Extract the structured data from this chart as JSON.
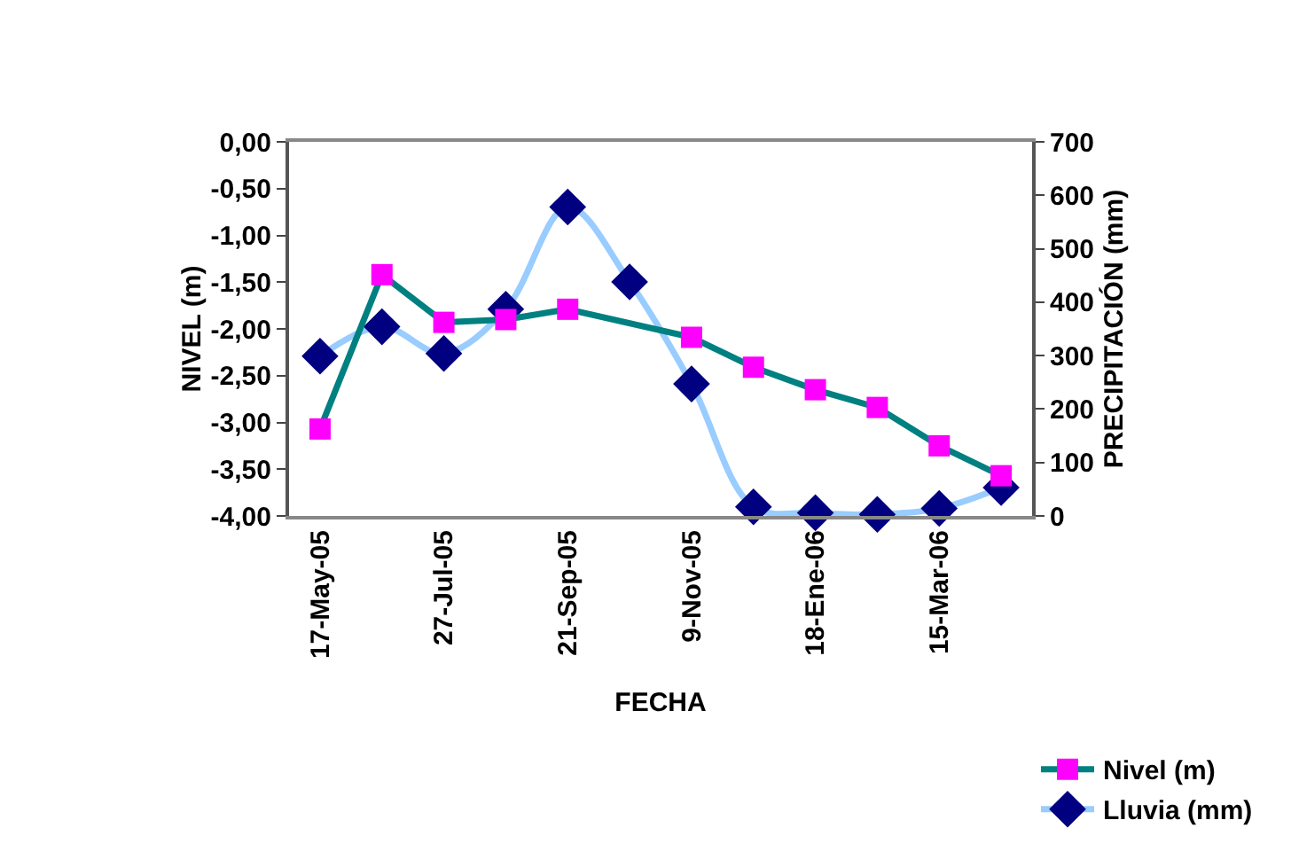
{
  "chart_data": {
    "type": "line",
    "xlabel": "FECHA",
    "ylabel": "NIVEL (m)",
    "y2label": "PRECIPITACIÓN (mm)",
    "categories": [
      "17-May-05",
      null,
      "27-Jul-05",
      null,
      "21-Sep-05",
      null,
      "9-Nov-05",
      null,
      "18-Ene-06",
      null,
      "15-Mar-06",
      null
    ],
    "series": [
      {
        "name": "Lluvia (mm)",
        "color": "#99ccff",
        "colors": [
          "#000080",
          "#000080",
          "#000080",
          "#000080",
          "#000080",
          "#000080",
          "#000080",
          "#000080",
          "#000080",
          "#000080",
          "#000080",
          "#000080"
        ],
        "marker": "diamond",
        "axis": "y2",
        "values": [
          299,
          354,
          304,
          387,
          578,
          438,
          247,
          17,
          6,
          3,
          14,
          53
        ]
      },
      {
        "name": "Nivel (m)",
        "color": "#008080",
        "colors": [
          "#ff00ff",
          "#ff00ff",
          "#ff00ff",
          "#ff00ff",
          "#ff00ff",
          null,
          "#ff00ff",
          "#ff00ff",
          "#ff00ff",
          "#ff00ff",
          "#ff00ff",
          "#ff00ff"
        ],
        "marker": "square",
        "values": [
          -3.07,
          -1.42,
          -1.93,
          -1.9,
          -1.79,
          null,
          -2.09,
          -2.41,
          -2.65,
          -2.84,
          -3.25,
          -3.57
        ]
      }
    ],
    "ylim": [
      -4,
      0
    ],
    "yticks": [
      {
        "value": 0,
        "label": "0,00"
      },
      {
        "value": -0.5,
        "label": "-0,50"
      },
      {
        "value": -1,
        "label": "-1,00"
      },
      {
        "value": -1.5,
        "label": "-1,50"
      },
      {
        "value": -2,
        "label": "-2,00"
      },
      {
        "value": -2.5,
        "label": "-2,50"
      },
      {
        "value": -3,
        "label": "-3,00"
      },
      {
        "value": -3.5,
        "label": "-3,50"
      },
      {
        "value": -4,
        "label": "-4,00"
      }
    ],
    "y2lim": [
      0,
      700
    ],
    "y2ticks": [
      0,
      100,
      200,
      300,
      400,
      500,
      600,
      700
    ],
    "legend": "bottom right"
  }
}
